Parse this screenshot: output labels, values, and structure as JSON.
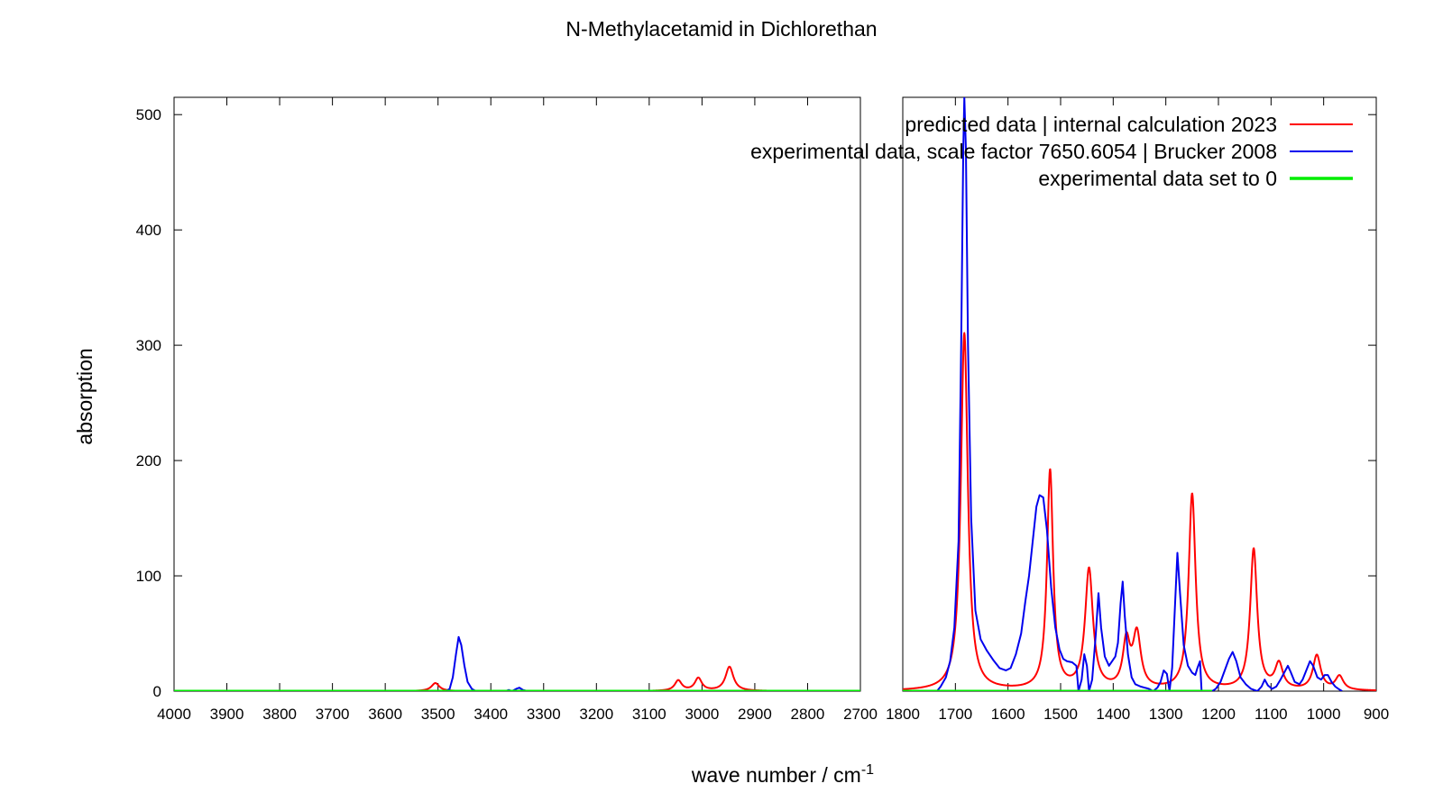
{
  "chart_data": {
    "type": "line",
    "title": "N-Methylacetamid in Dichlorethan",
    "xlabel": "wave number / cm",
    "xlabel_superscript": "-1",
    "ylabel": "absorption",
    "ylim": [
      0,
      515
    ],
    "yticks": [
      0,
      100,
      200,
      300,
      400,
      500
    ],
    "grid": false,
    "legend_position": "top-right",
    "x_reversed": true,
    "panels": [
      {
        "xlim": [
          4000,
          2700
        ],
        "xticks": [
          4000,
          3900,
          3800,
          3700,
          3600,
          3500,
          3400,
          3300,
          3200,
          3100,
          3000,
          2900,
          2800,
          2700
        ]
      },
      {
        "xlim": [
          1800,
          900
        ],
        "xticks": [
          1800,
          1700,
          1600,
          1500,
          1400,
          1300,
          1200,
          1100,
          1000,
          900
        ]
      }
    ],
    "series": [
      {
        "name": "predicted data | internal calculation 2023",
        "color": "#ff0000",
        "peaks": [
          {
            "x": 3505,
            "h": 7,
            "w": 9
          },
          {
            "x": 3045,
            "h": 9,
            "w": 8
          },
          {
            "x": 3007,
            "h": 11,
            "w": 8
          },
          {
            "x": 2948,
            "h": 21,
            "w": 9
          },
          {
            "x": 1683,
            "h": 310,
            "w": 8
          },
          {
            "x": 1520,
            "h": 190,
            "w": 7
          },
          {
            "x": 1446,
            "h": 104,
            "w": 9
          },
          {
            "x": 1375,
            "h": 40,
            "w": 8
          },
          {
            "x": 1355,
            "h": 47,
            "w": 9
          },
          {
            "x": 1250,
            "h": 170,
            "w": 8
          },
          {
            "x": 1133,
            "h": 122,
            "w": 8
          },
          {
            "x": 1085,
            "h": 22,
            "w": 9
          },
          {
            "x": 1013,
            "h": 30,
            "w": 9
          },
          {
            "x": 970,
            "h": 12,
            "w": 9
          }
        ]
      },
      {
        "name": "experimental data, scale factor 7650.6054 | Brucker 2008",
        "color": "#0000ee",
        "points": [
          [
            3485,
            0
          ],
          [
            3478,
            2
          ],
          [
            3472,
            12
          ],
          [
            3466,
            32
          ],
          [
            3461,
            47
          ],
          [
            3456,
            40
          ],
          [
            3450,
            22
          ],
          [
            3444,
            8
          ],
          [
            3436,
            2
          ],
          [
            3428,
            0
          ],
          [
            3372,
            0
          ],
          [
            3366,
            1
          ],
          [
            3360,
            0
          ],
          [
            3352,
            2
          ],
          [
            3346,
            3
          ],
          [
            3339,
            1
          ],
          [
            3330,
            0
          ],
          [
            1735,
            0
          ],
          [
            1728,
            4
          ],
          [
            1718,
            12
          ],
          [
            1710,
            26
          ],
          [
            1702,
            55
          ],
          [
            1694,
            130
          ],
          [
            1689,
            300
          ],
          [
            1685,
            470
          ],
          [
            1683,
            515
          ],
          [
            1680,
            470
          ],
          [
            1676,
            300
          ],
          [
            1670,
            150
          ],
          [
            1662,
            70
          ],
          [
            1652,
            45
          ],
          [
            1640,
            35
          ],
          [
            1628,
            27
          ],
          [
            1616,
            20
          ],
          [
            1604,
            18
          ],
          [
            1595,
            20
          ],
          [
            1585,
            32
          ],
          [
            1575,
            50
          ],
          [
            1567,
            78
          ],
          [
            1560,
            100
          ],
          [
            1553,
            130
          ],
          [
            1546,
            160
          ],
          [
            1540,
            170
          ],
          [
            1533,
            168
          ],
          [
            1526,
            140
          ],
          [
            1518,
            90
          ],
          [
            1510,
            55
          ],
          [
            1502,
            36
          ],
          [
            1495,
            28
          ],
          [
            1488,
            26
          ],
          [
            1478,
            25
          ],
          [
            1470,
            22
          ],
          [
            1466,
            0
          ],
          [
            1460,
            10
          ],
          [
            1455,
            32
          ],
          [
            1450,
            22
          ],
          [
            1446,
            0
          ],
          [
            1440,
            10
          ],
          [
            1433,
            50
          ],
          [
            1428,
            85
          ],
          [
            1423,
            55
          ],
          [
            1416,
            30
          ],
          [
            1408,
            22
          ],
          [
            1402,
            26
          ],
          [
            1396,
            30
          ],
          [
            1391,
            42
          ],
          [
            1386,
            76
          ],
          [
            1382,
            95
          ],
          [
            1378,
            65
          ],
          [
            1372,
            32
          ],
          [
            1365,
            12
          ],
          [
            1358,
            6
          ],
          [
            1348,
            4
          ],
          [
            1340,
            3
          ],
          [
            1332,
            2
          ],
          [
            1324,
            0
          ],
          [
            1316,
            3
          ],
          [
            1310,
            8
          ],
          [
            1304,
            18
          ],
          [
            1298,
            15
          ],
          [
            1293,
            0
          ],
          [
            1288,
            20
          ],
          [
            1282,
            80
          ],
          [
            1278,
            120
          ],
          [
            1273,
            85
          ],
          [
            1266,
            40
          ],
          [
            1258,
            22
          ],
          [
            1250,
            16
          ],
          [
            1244,
            14
          ],
          [
            1240,
            20
          ],
          [
            1235,
            26
          ],
          [
            1232,
            0
          ],
          [
            1212,
            0
          ],
          [
            1205,
            2
          ],
          [
            1196,
            8
          ],
          [
            1188,
            18
          ],
          [
            1180,
            28
          ],
          [
            1173,
            34
          ],
          [
            1166,
            26
          ],
          [
            1158,
            12
          ],
          [
            1148,
            6
          ],
          [
            1138,
            2
          ],
          [
            1126,
            0
          ],
          [
            1118,
            4
          ],
          [
            1112,
            10
          ],
          [
            1106,
            5
          ],
          [
            1098,
            2
          ],
          [
            1090,
            4
          ],
          [
            1082,
            10
          ],
          [
            1075,
            16
          ],
          [
            1068,
            22
          ],
          [
            1063,
            17
          ],
          [
            1055,
            8
          ],
          [
            1046,
            6
          ],
          [
            1040,
            10
          ],
          [
            1033,
            18
          ],
          [
            1026,
            26
          ],
          [
            1020,
            22
          ],
          [
            1012,
            12
          ],
          [
            1005,
            10
          ],
          [
            998,
            14
          ],
          [
            992,
            14
          ],
          [
            985,
            8
          ],
          [
            978,
            4
          ],
          [
            972,
            2
          ],
          [
            965,
            0
          ]
        ]
      },
      {
        "name": "experimental data set to 0",
        "color": "#00ee00",
        "points": [
          [
            4000,
            0
          ],
          [
            2700,
            0
          ],
          [
            1800,
            0
          ],
          [
            1735,
            0
          ],
          [
            1232,
            0
          ],
          [
            1212,
            0
          ]
        ]
      }
    ]
  }
}
